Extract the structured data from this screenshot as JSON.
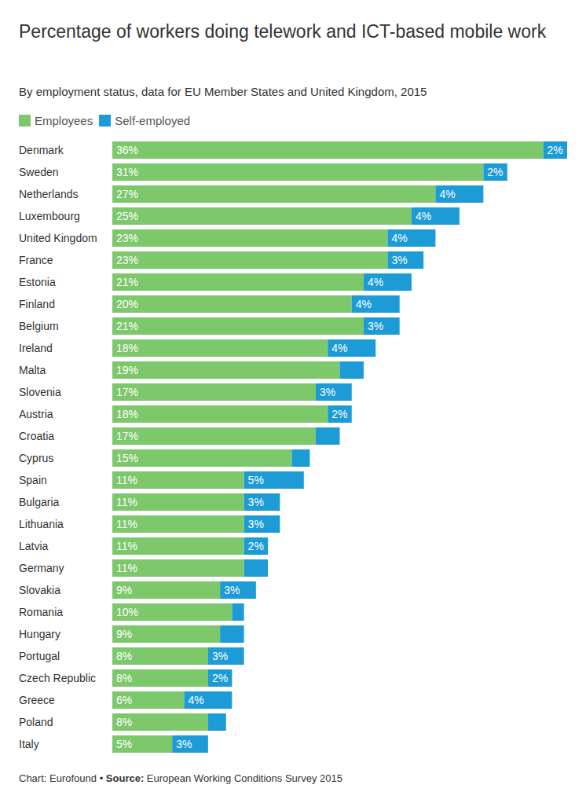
{
  "chart_data": {
    "type": "bar",
    "orientation": "horizontal",
    "stacked": true,
    "data_labels": true,
    "tick_labels": "y",
    "grid": false,
    "title": "Percentage of workers doing telework and ICT-based mobile work",
    "subtitle": "By employment status, data for EU Member States and United Kingdom, 2015",
    "footer": {
      "credit": "Chart: Eurofound",
      "separator": "•",
      "source_label": "Source:",
      "source": "European Working Conditions Survey 2015"
    },
    "categories": [
      "Denmark",
      "Sweden",
      "Netherlands",
      "Luxembourg",
      "United Kingdom",
      "France",
      "Estonia",
      "Finland",
      "Belgium",
      "Ireland",
      "Malta",
      "Slovenia",
      "Austria",
      "Croatia",
      "Cyprus",
      "Spain",
      "Bulgaria",
      "Lithuania",
      "Latvia",
      "Germany",
      "Slovakia",
      "Romania",
      "Hungary",
      "Portugal",
      "Czech Republic",
      "Greece",
      "Poland",
      "Italy"
    ],
    "xlim": [
      0,
      38
    ],
    "series": [
      {
        "name": "Employees",
        "color": "#7cc86b",
        "values": [
          36,
          31,
          27,
          25,
          23,
          23,
          21,
          20,
          21,
          18,
          19,
          17,
          18,
          17,
          15,
          11,
          11,
          11,
          11,
          11,
          9,
          10,
          9,
          8,
          8,
          6,
          8,
          5
        ],
        "value_labels": [
          "36%",
          "31%",
          "27%",
          "25%",
          "23%",
          "23%",
          "21%",
          "20%",
          "21%",
          "18%",
          "19%",
          "17%",
          "18%",
          "17%",
          "15%",
          "11%",
          "11%",
          "11%",
          "11%",
          "11%",
          "9%",
          "10%",
          "9%",
          "8%",
          "8%",
          "6%",
          "8%",
          "5%"
        ]
      },
      {
        "name": "Self-employed",
        "color": "#1c9bd7",
        "values": [
          2,
          2,
          4,
          4,
          4,
          3,
          4,
          4,
          3,
          4,
          2,
          3,
          2,
          2,
          1.5,
          5,
          3,
          3,
          2,
          2,
          3,
          1,
          2,
          3,
          2,
          4,
          1.5,
          3
        ],
        "value_labels": [
          "2%",
          "2%",
          "4%",
          "4%",
          "4%",
          "3%",
          "4%",
          "4%",
          "3%",
          "4%",
          null,
          "3%",
          "2%",
          null,
          null,
          "5%",
          "3%",
          "3%",
          "2%",
          null,
          "3%",
          null,
          null,
          "3%",
          "2%",
          "4%",
          null,
          "3%"
        ]
      }
    ]
  }
}
